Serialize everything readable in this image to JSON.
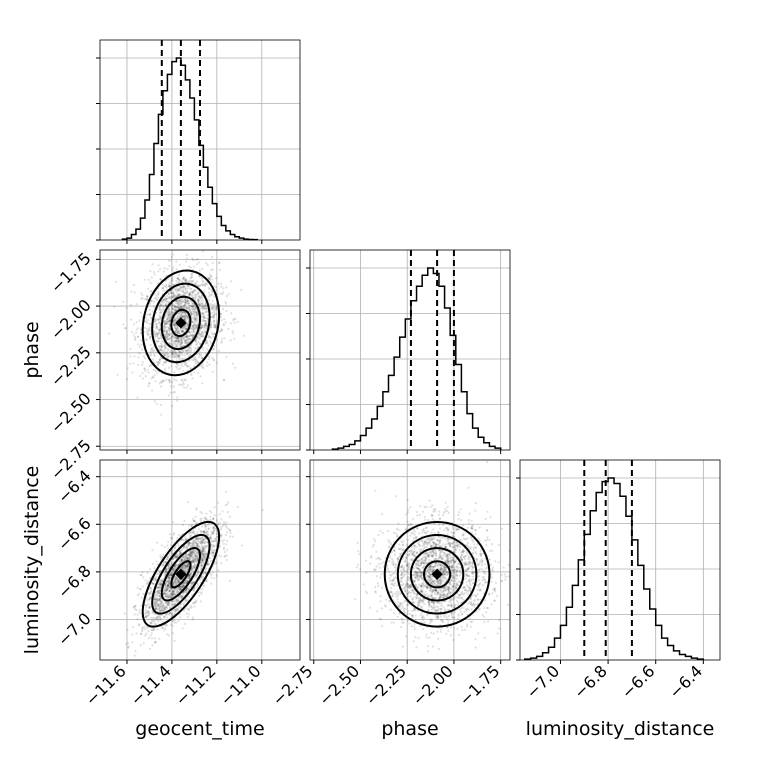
{
  "chart_data": {
    "type": "corner",
    "parameters": [
      {
        "key": "geocent_time",
        "label": "geocent_time",
        "mean": -11.36,
        "std": 0.085,
        "range": [
          -11.72,
          -10.83
        ],
        "ticks": [
          -11.6,
          -11.4,
          -11.2,
          -11.0
        ],
        "tick_labels": [
          "−11.6",
          "−11.4",
          "−11.2",
          "−11.0"
        ],
        "quantiles": [
          -11.445,
          -11.36,
          -11.275
        ],
        "hist_bins": [
          -11.62,
          -11.6,
          -11.58,
          -11.56,
          -11.54,
          -11.52,
          -11.5,
          -11.48,
          -11.46,
          -11.44,
          -11.42,
          -11.4,
          -11.38,
          -11.36,
          -11.34,
          -11.32,
          -11.3,
          -11.28,
          -11.26,
          -11.24,
          -11.22,
          -11.2,
          -11.18,
          -11.16,
          -11.14,
          -11.12,
          -11.1,
          -11.08,
          -11.06,
          -11.04,
          -11.02
        ],
        "hist_counts": [
          0.005,
          0.01,
          0.03,
          0.06,
          0.12,
          0.22,
          0.36,
          0.53,
          0.69,
          0.82,
          0.91,
          0.98,
          1.0,
          0.96,
          0.88,
          0.78,
          0.66,
          0.52,
          0.4,
          0.29,
          0.2,
          0.13,
          0.08,
          0.05,
          0.03,
          0.018,
          0.01,
          0.005,
          0.003,
          0.002
        ]
      },
      {
        "key": "phase",
        "label": "phase",
        "mean": -2.09,
        "std": 0.14,
        "range": [
          -2.77,
          -1.7
        ],
        "ticks": [
          -2.75,
          -2.5,
          -2.25,
          -2.0,
          -1.75
        ],
        "tick_labels": [
          "−2.75",
          "−2.50",
          "−2.25",
          "−2.00",
          "−1.75"
        ],
        "quantiles": [
          -2.23,
          -2.09,
          -2.0
        ],
        "hist_bins": [
          -2.65,
          -2.62,
          -2.59,
          -2.56,
          -2.53,
          -2.5,
          -2.47,
          -2.44,
          -2.41,
          -2.38,
          -2.35,
          -2.32,
          -2.29,
          -2.26,
          -2.23,
          -2.2,
          -2.17,
          -2.14,
          -2.11,
          -2.08,
          -2.05,
          -2.02,
          -1.99,
          -1.96,
          -1.93,
          -1.9,
          -1.87,
          -1.84,
          -1.81,
          -1.78,
          -1.75
        ],
        "hist_counts": [
          0.005,
          0.01,
          0.02,
          0.03,
          0.05,
          0.08,
          0.12,
          0.17,
          0.24,
          0.32,
          0.41,
          0.51,
          0.62,
          0.72,
          0.82,
          0.9,
          0.96,
          1.0,
          0.97,
          0.9,
          0.78,
          0.63,
          0.47,
          0.32,
          0.2,
          0.12,
          0.07,
          0.04,
          0.02,
          0.01
        ]
      },
      {
        "key": "luminosity_distance",
        "label": "luminosity_distance",
        "mean": -6.81,
        "std": 0.11,
        "range": [
          -7.17,
          -6.33
        ],
        "ticks": [
          -7.0,
          -6.8,
          -6.6,
          -6.4
        ],
        "tick_labels": [
          "−7.0",
          "−6.8",
          "−6.6",
          "−6.4"
        ],
        "quantiles": [
          -6.9,
          -6.81,
          -6.7
        ],
        "hist_bins": [
          -7.15,
          -7.125,
          -7.1,
          -7.075,
          -7.05,
          -7.025,
          -7.0,
          -6.975,
          -6.95,
          -6.925,
          -6.9,
          -6.875,
          -6.85,
          -6.825,
          -6.8,
          -6.775,
          -6.75,
          -6.725,
          -6.7,
          -6.675,
          -6.65,
          -6.625,
          -6.6,
          -6.575,
          -6.55,
          -6.525,
          -6.5,
          -6.475,
          -6.45,
          -6.425,
          -6.4
        ],
        "hist_counts": [
          0.005,
          0.01,
          0.02,
          0.04,
          0.07,
          0.12,
          0.19,
          0.29,
          0.41,
          0.55,
          0.69,
          0.82,
          0.92,
          0.98,
          1.0,
          0.97,
          0.9,
          0.79,
          0.66,
          0.52,
          0.39,
          0.28,
          0.19,
          0.12,
          0.08,
          0.05,
          0.03,
          0.02,
          0.01,
          0.005
        ]
      }
    ],
    "correlations": [
      {
        "x": "geocent_time",
        "y": "phase",
        "rho": 0.15
      },
      {
        "x": "geocent_time",
        "y": "luminosity_distance",
        "rho": 0.72
      },
      {
        "x": "phase",
        "y": "luminosity_distance",
        "rho": 0.0
      }
    ],
    "contour_levels_sigma": [
      0.5,
      1.0,
      1.5,
      2.0
    ],
    "grid": true
  }
}
